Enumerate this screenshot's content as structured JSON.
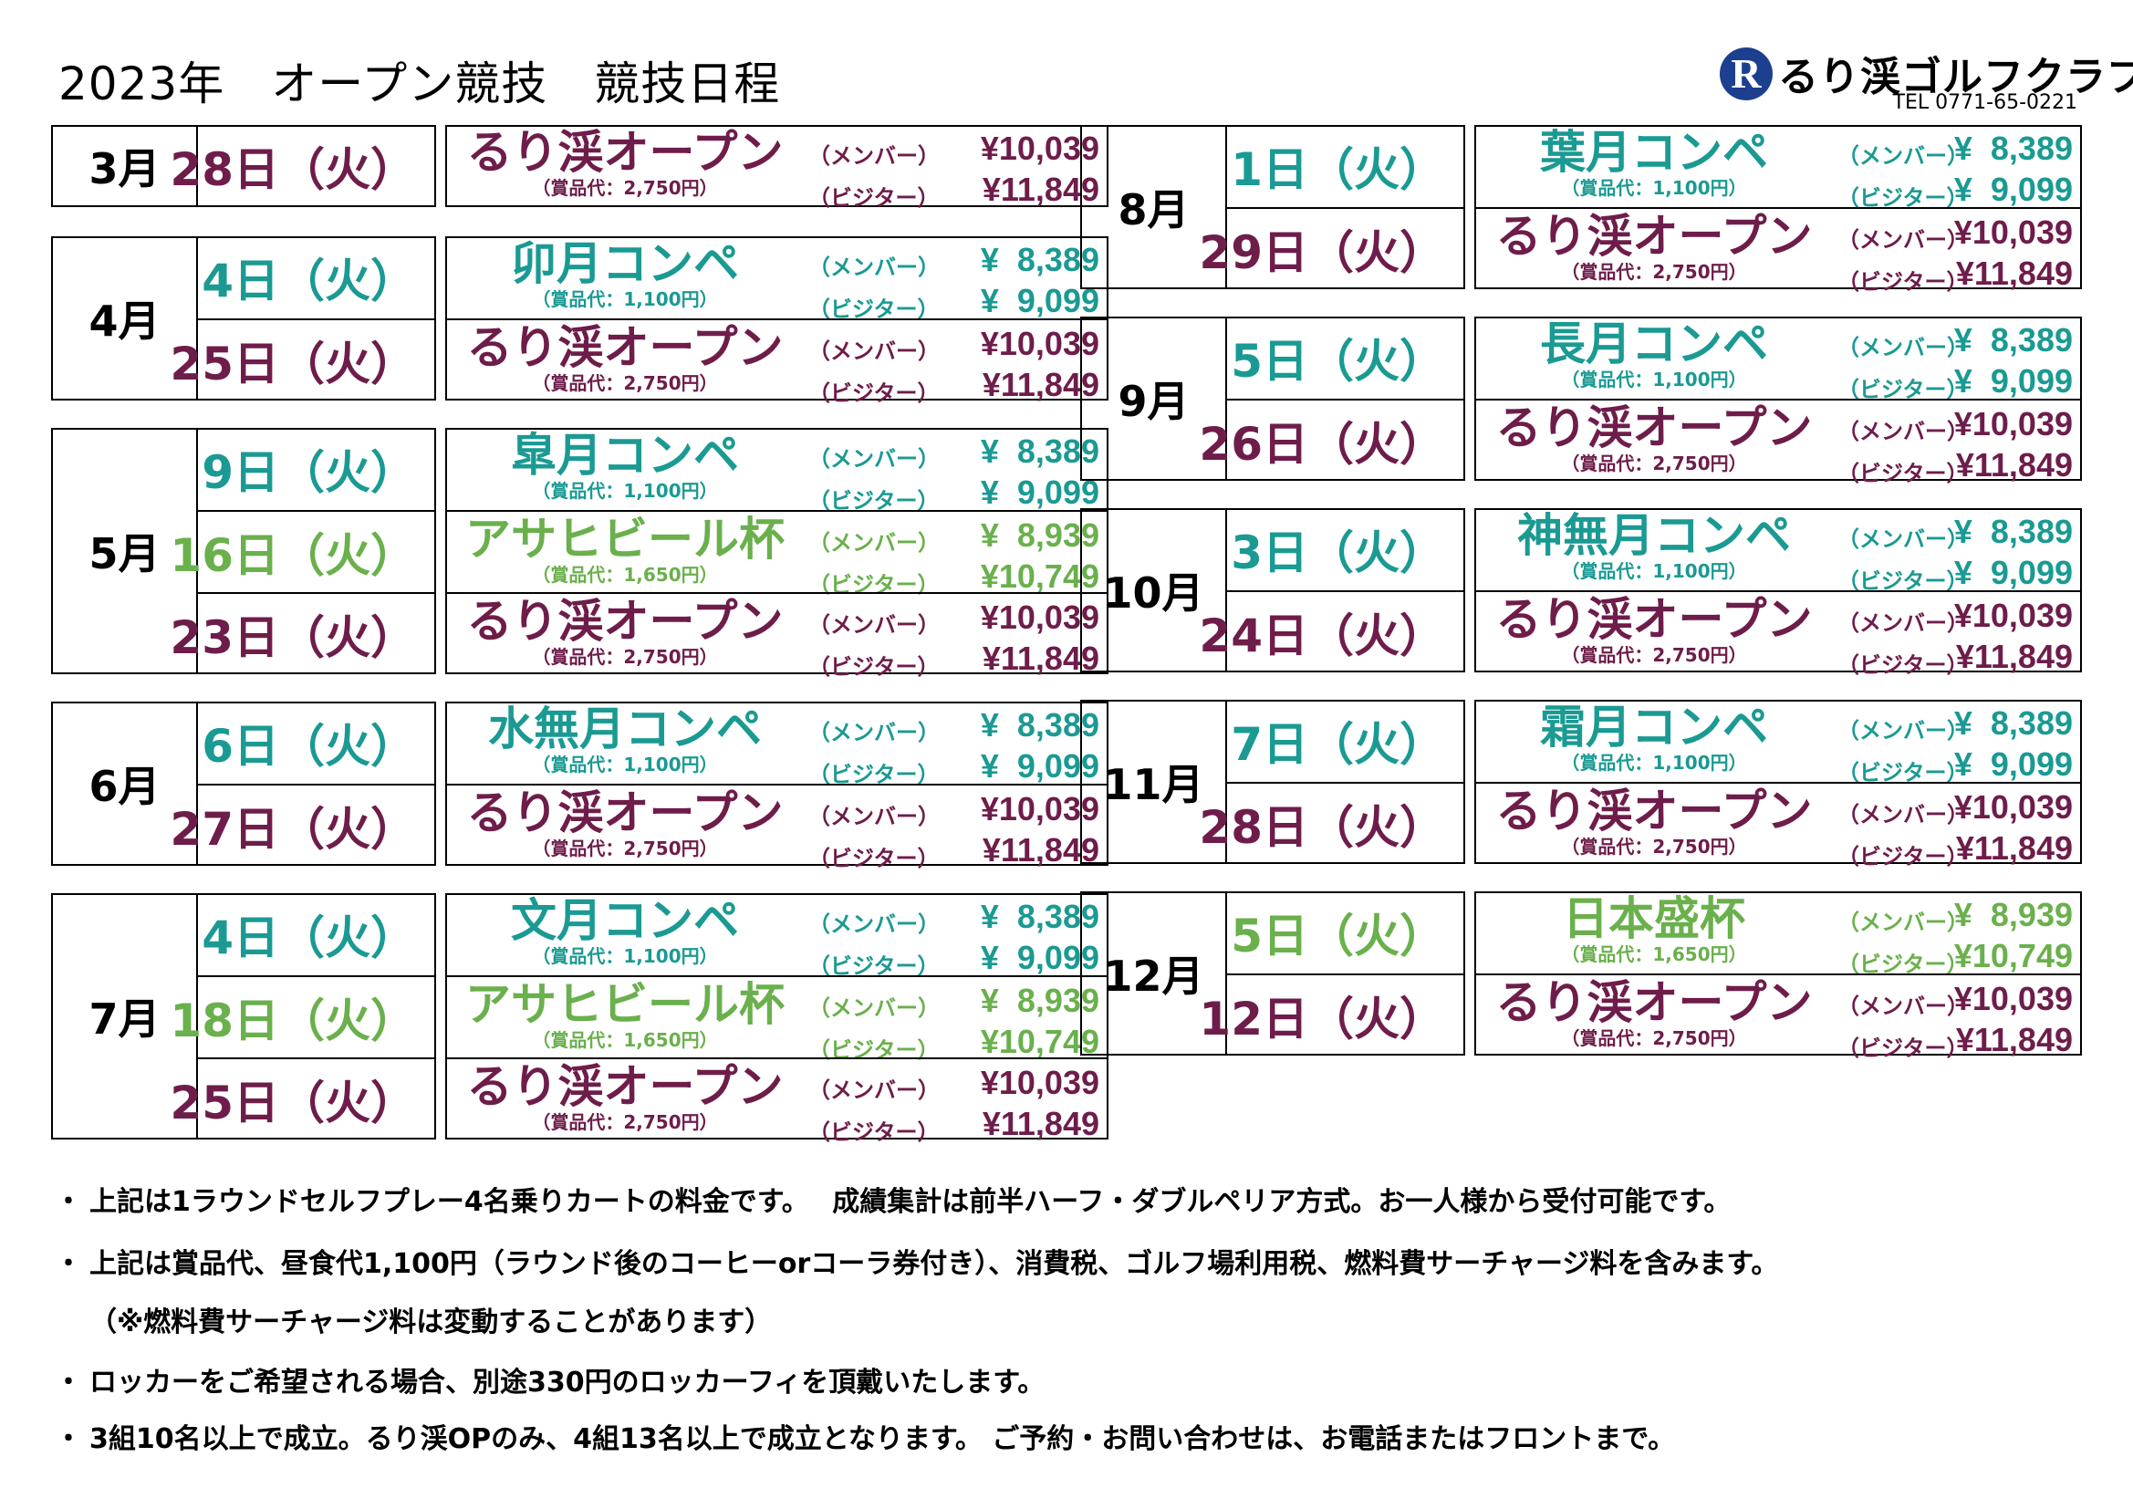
{
  "header": {
    "title": "2023年　オープン競技　競技日程",
    "logo_mark": "R",
    "logo_name": "るり渓ゴルフクラブ",
    "tel": "TEL 0771-65-0221"
  },
  "colors": {
    "ruri": "#6e1d4a",
    "teal": "#1a9a93",
    "asahi": "#6ab04c",
    "black": "#000000",
    "logo": "#1c3f8f"
  },
  "labels": {
    "member": "（メンバー）",
    "visitor": "（ビジター）"
  },
  "schedule": [
    {
      "month": "3月",
      "events": [
        {
          "date": "28日（火）",
          "name": "るり渓オープン",
          "prize": "（賞品代：2,750円）",
          "member_price": "¥10,039",
          "visitor_price": "¥11,849",
          "color": "ruri"
        }
      ]
    },
    {
      "month": "4月",
      "events": [
        {
          "date": "4日（火）",
          "name": "卯月コンペ",
          "prize": "（賞品代：1,100円）",
          "member_price": "¥  8,389",
          "visitor_price": "¥  9,099",
          "color": "teal"
        },
        {
          "date": "25日（火）",
          "name": "るり渓オープン",
          "prize": "（賞品代：2,750円）",
          "member_price": "¥10,039",
          "visitor_price": "¥11,849",
          "color": "ruri"
        }
      ]
    },
    {
      "month": "5月",
      "events": [
        {
          "date": "9日（火）",
          "name": "皐月コンペ",
          "prize": "（賞品代：1,100円）",
          "member_price": "¥  8,389",
          "visitor_price": "¥  9,099",
          "color": "teal"
        },
        {
          "date": "16日（火）",
          "name": "アサヒビール杯",
          "prize": "（賞品代：1,650円）",
          "member_price": "¥  8,939",
          "visitor_price": "¥10,749",
          "color": "asahi"
        },
        {
          "date": "23日（火）",
          "name": "るり渓オープン",
          "prize": "（賞品代：2,750円）",
          "member_price": "¥10,039",
          "visitor_price": "¥11,849",
          "color": "ruri"
        }
      ]
    },
    {
      "month": "6月",
      "events": [
        {
          "date": "6日（火）",
          "name": "水無月コンペ",
          "prize": "（賞品代：1,100円）",
          "member_price": "¥  8,389",
          "visitor_price": "¥  9,099",
          "color": "teal"
        },
        {
          "date": "27日（火）",
          "name": "るり渓オープン",
          "prize": "（賞品代：2,750円）",
          "member_price": "¥10,039",
          "visitor_price": "¥11,849",
          "color": "ruri"
        }
      ]
    },
    {
      "month": "7月",
      "events": [
        {
          "date": "4日（火）",
          "name": "文月コンペ",
          "prize": "（賞品代：1,100円）",
          "member_price": "¥  8,389",
          "visitor_price": "¥  9,099",
          "color": "teal"
        },
        {
          "date": "18日（火）",
          "name": "アサヒビール杯",
          "prize": "（賞品代：1,650円）",
          "member_price": "¥  8,939",
          "visitor_price": "¥10,749",
          "color": "asahi"
        },
        {
          "date": "25日（火）",
          "name": "るり渓オープン",
          "prize": "（賞品代：2,750円）",
          "member_price": "¥10,039",
          "visitor_price": "¥11,849",
          "color": "ruri"
        }
      ]
    },
    {
      "month": "8月",
      "events": [
        {
          "date": "1日（火）",
          "name": "葉月コンペ",
          "prize": "（賞品代：1,100円）",
          "member_price": "¥  8,389",
          "visitor_price": "¥  9,099",
          "color": "teal"
        },
        {
          "date": "29日（火）",
          "name": "るり渓オープン",
          "prize": "（賞品代：2,750円）",
          "member_price": "¥10,039",
          "visitor_price": "¥11,849",
          "color": "ruri"
        }
      ]
    },
    {
      "month": "9月",
      "events": [
        {
          "date": "5日（火）",
          "name": "長月コンペ",
          "prize": "（賞品代：1,100円）",
          "member_price": "¥  8,389",
          "visitor_price": "¥  9,099",
          "color": "teal"
        },
        {
          "date": "26日（火）",
          "name": "るり渓オープン",
          "prize": "（賞品代：2,750円）",
          "member_price": "¥10,039",
          "visitor_price": "¥11,849",
          "color": "ruri"
        }
      ]
    },
    {
      "month": "10月",
      "events": [
        {
          "date": "3日（火）",
          "name": "神無月コンペ",
          "prize": "（賞品代：1,100円）",
          "member_price": "¥  8,389",
          "visitor_price": "¥  9,099",
          "color": "teal"
        },
        {
          "date": "24日（火）",
          "name": "るり渓オープン",
          "prize": "（賞品代：2,750円）",
          "member_price": "¥10,039",
          "visitor_price": "¥11,849",
          "color": "ruri"
        }
      ]
    },
    {
      "month": "11月",
      "events": [
        {
          "date": "7日（火）",
          "name": "霜月コンペ",
          "prize": "（賞品代：1,100円）",
          "member_price": "¥  8,389",
          "visitor_price": "¥  9,099",
          "color": "teal"
        },
        {
          "date": "28日（火）",
          "name": "るり渓オープン",
          "prize": "（賞品代：2,750円）",
          "member_price": "¥10,039",
          "visitor_price": "¥11,849",
          "color": "ruri"
        }
      ]
    },
    {
      "month": "12月",
      "events": [
        {
          "date": "5日（火）",
          "name": "日本盛杯",
          "prize": "（賞品代：1,650円）",
          "member_price": "¥  8,939",
          "visitor_price": "¥10,749",
          "color": "asahi"
        },
        {
          "date": "12日（火）",
          "name": "るり渓オープン",
          "prize": "（賞品代：2,750円）",
          "member_price": "¥10,039",
          "visitor_price": "¥11,849",
          "color": "ruri"
        }
      ]
    }
  ],
  "notes": [
    {
      "bullet": "・",
      "text": "上記は1ラウンドセルフプレー4名乗りカートの料金です。　 成績集計は前半ハーフ・ダブルペリア方式。お一人様から受付可能です。"
    },
    {
      "bullet": "・",
      "text": "上記は賞品代、昼食代1,100円（ラウンド後のコーヒーorコーラ券付き）、消費税、ゴルフ場利用税、燃料費サーチャージ料を含みます。"
    },
    {
      "bullet": "",
      "text": "（※燃料費サーチャージ料は変動することがあります）"
    },
    {
      "bullet": "・",
      "text": "ロッカーをご希望される場合、別途330円のロッカーフィを頂戴いたします。"
    },
    {
      "bullet": "・",
      "text": "3組10名以上で成立。るり渓OPのみ、4組13名以上で成立となります。 ご予約・お問い合わせは、お電話またはフロントまで。"
    }
  ]
}
